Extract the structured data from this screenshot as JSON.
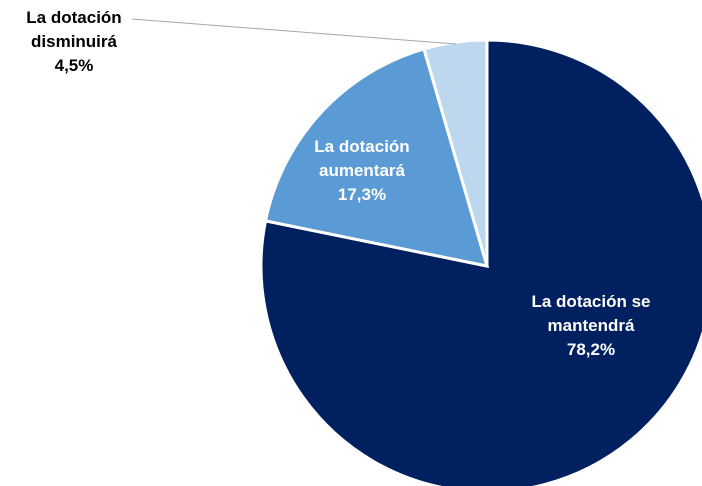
{
  "chart_data": {
    "type": "pie",
    "start_angle_deg": 0,
    "direction": "clockwise",
    "slices": [
      {
        "label_lines": [
          "La dotación se",
          "mantendrá"
        ],
        "value": 78.2,
        "value_label": "78,2%",
        "color": "#002060",
        "label_color": "#ffffff"
      },
      {
        "label_lines": [
          "La dotación",
          "aumentará"
        ],
        "value": 17.3,
        "value_label": "17,3%",
        "color": "#5b9bd5",
        "label_color": "#ffffff"
      },
      {
        "label_lines": [
          "La dotación",
          "disminuirá"
        ],
        "value": 4.5,
        "value_label": "4,5%",
        "color": "#bdd7ee",
        "label_color": "#000000"
      }
    ]
  }
}
